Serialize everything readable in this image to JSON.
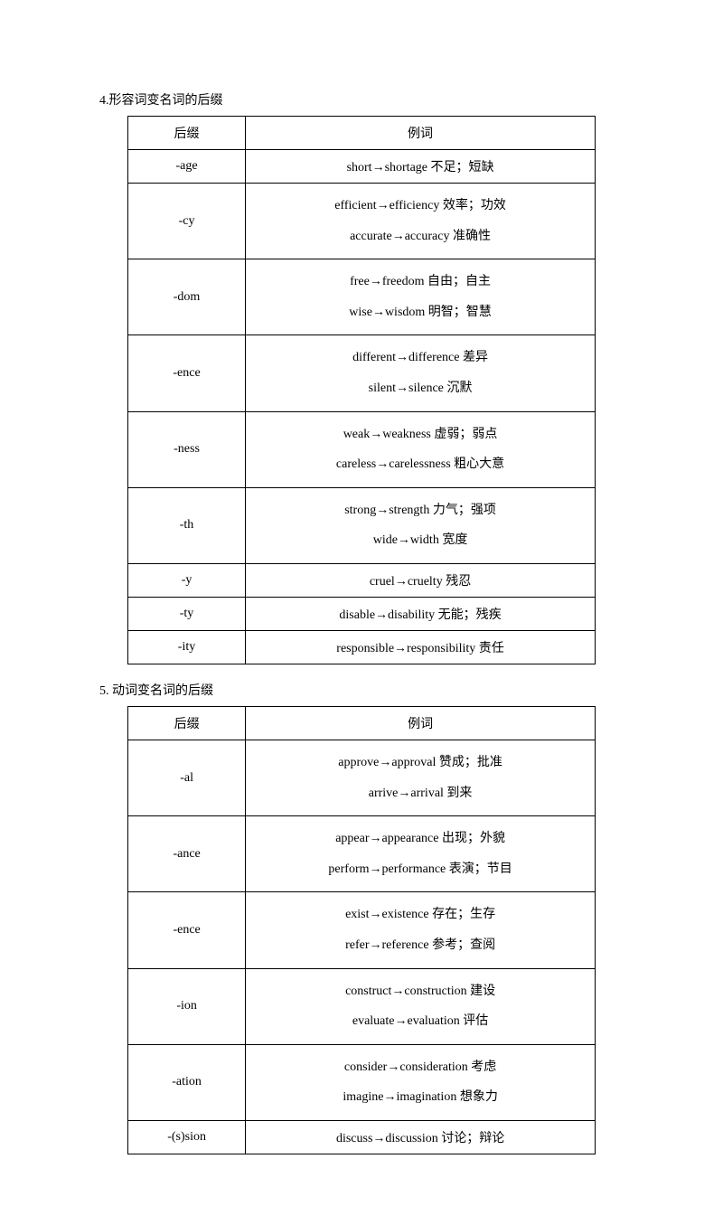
{
  "section4": {
    "title": "4.形容词变名词的后缀",
    "headers": {
      "suffix": "后缀",
      "examples": "例词"
    },
    "rows": [
      {
        "suffix": "-age",
        "lines": [
          "short→shortage 不足；短缺"
        ]
      },
      {
        "suffix": "-cy",
        "lines": [
          "efficient→efficiency 效率；功效",
          "accurate→accuracy 准确性"
        ]
      },
      {
        "suffix": "-dom",
        "lines": [
          "free→freedom 自由；自主",
          "wise→wisdom 明智；智慧"
        ]
      },
      {
        "suffix": "-ence",
        "lines": [
          "different→difference 差异",
          "silent→silence 沉默"
        ]
      },
      {
        "suffix": "-ness",
        "lines": [
          "weak→weakness 虚弱；弱点",
          "careless→carelessness 粗心大意"
        ]
      },
      {
        "suffix": "-th",
        "lines": [
          "strong→strength 力气；强项",
          "wide→width 宽度"
        ]
      },
      {
        "suffix": "-y",
        "lines": [
          "cruel→cruelty 残忍"
        ]
      },
      {
        "suffix": "-ty",
        "lines": [
          "disable→disability 无能；残疾"
        ]
      },
      {
        "suffix": "-ity",
        "lines": [
          "responsible→responsibility 责任"
        ]
      }
    ]
  },
  "section5": {
    "title": "5. 动词变名词的后缀",
    "headers": {
      "suffix": "后缀",
      "examples": "例词"
    },
    "rows": [
      {
        "suffix": "-al",
        "lines": [
          "approve→approval 赞成；批准",
          "arrive→arrival 到来"
        ]
      },
      {
        "suffix": "-ance",
        "lines": [
          "appear→appearance 出现；外貌",
          "perform→performance 表演；节目"
        ]
      },
      {
        "suffix": "-ence",
        "lines": [
          "exist→existence 存在；生存",
          "refer→reference 参考；查阅"
        ]
      },
      {
        "suffix": "-ion",
        "lines": [
          "construct→construction 建设",
          "evaluate→evaluation 评估"
        ]
      },
      {
        "suffix": "-ation",
        "lines": [
          "consider→consideration 考虑",
          "imagine→imagination 想象力"
        ]
      },
      {
        "suffix": "-(s)sion",
        "lines": [
          "discuss→discussion 讨论；辩论"
        ]
      }
    ]
  }
}
